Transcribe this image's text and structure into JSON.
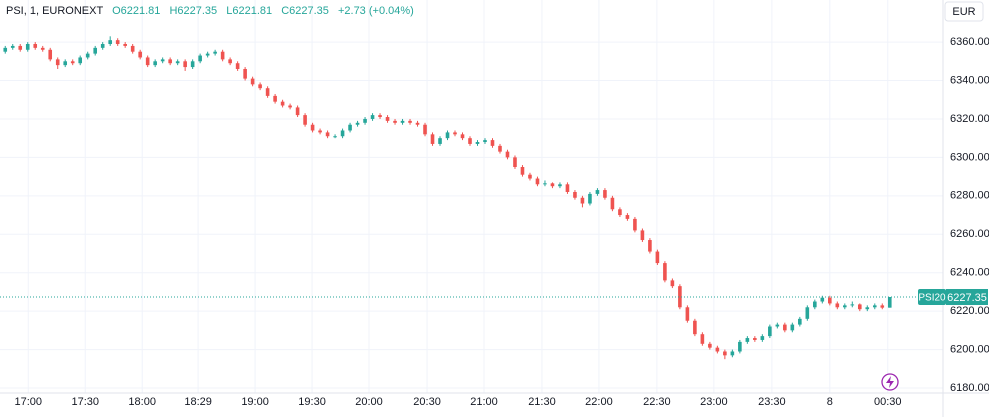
{
  "chart_data": {
    "type": "candlestick",
    "legend_items": [
      "PSI, 1, EURONEXT",
      "O6221.81",
      "H6227.35",
      "L6221.81",
      "C6227.35",
      "+2.73 (+0.04%)"
    ],
    "currency": "EUR",
    "symbol_tag": "PSI20",
    "last_price": 6227.35,
    "up_color": "#26a69a",
    "down_color": "#ef5350",
    "grid": true,
    "ylim": [
      6177.4,
      6381.9
    ],
    "yticks": [
      {
        "value": 6180,
        "label": "6180.00"
      },
      {
        "value": 6200,
        "label": "6200.00"
      },
      {
        "value": 6220,
        "label": "6220.00"
      },
      {
        "value": 6240,
        "label": "6240.00"
      },
      {
        "value": 6260,
        "label": "6260.00"
      },
      {
        "value": 6280,
        "label": "6280.00"
      },
      {
        "value": 6300,
        "label": "6300.00"
      },
      {
        "value": 6320,
        "label": "6320.00"
      },
      {
        "value": 6340,
        "label": "6340.00"
      },
      {
        "value": 6360,
        "label": "6360.00"
      }
    ],
    "xlim": [
      -0.7,
      125.1
    ],
    "xticks": [
      {
        "value": 3.07,
        "label": "17:00"
      },
      {
        "value": 10.67,
        "label": "17:30"
      },
      {
        "value": 18.27,
        "label": "18:00"
      },
      {
        "value": 25.73,
        "label": "18:29"
      },
      {
        "value": 33.33,
        "label": "19:00"
      },
      {
        "value": 40.93,
        "label": "19:30"
      },
      {
        "value": 48.53,
        "label": "20:00"
      },
      {
        "value": 56.27,
        "label": "20:30"
      },
      {
        "value": 63.87,
        "label": "21:00"
      },
      {
        "value": 71.6,
        "label": "21:30"
      },
      {
        "value": 79.2,
        "label": "22:00"
      },
      {
        "value": 86.93,
        "label": "22:30"
      },
      {
        "value": 94.53,
        "label": "23:00"
      },
      {
        "value": 102.27,
        "label": "23:30"
      },
      {
        "value": 110,
        "label": "8"
      },
      {
        "value": 117.73,
        "label": "00:30"
      }
    ],
    "ohlc": [
      [
        6355,
        6358,
        6354,
        6357
      ],
      [
        6357,
        6359,
        6356,
        6358
      ],
      [
        6358,
        6359,
        6355,
        6356
      ],
      [
        6356,
        6360,
        6355,
        6359
      ],
      [
        6359,
        6360,
        6356,
        6357
      ],
      [
        6357,
        6358,
        6355,
        6356
      ],
      [
        6356,
        6357,
        6350,
        6351
      ],
      [
        6351,
        6352,
        6346,
        6348
      ],
      [
        6348,
        6351,
        6347,
        6350
      ],
      [
        6350,
        6351,
        6348,
        6349
      ],
      [
        6349,
        6353,
        6348,
        6352
      ],
      [
        6352,
        6355,
        6351,
        6354
      ],
      [
        6354,
        6358,
        6353,
        6357
      ],
      [
        6357,
        6360,
        6356,
        6359
      ],
      [
        6359,
        6363,
        6358,
        6361
      ],
      [
        6361,
        6362,
        6358,
        6359
      ],
      [
        6359,
        6360,
        6357,
        6358
      ],
      [
        6358,
        6359,
        6354,
        6355
      ],
      [
        6355,
        6356,
        6351,
        6352
      ],
      [
        6352,
        6353,
        6347,
        6348
      ],
      [
        6348,
        6351,
        6347,
        6350
      ],
      [
        6350,
        6352,
        6349,
        6351
      ],
      [
        6351,
        6352,
        6348,
        6349
      ],
      [
        6349,
        6351,
        6348,
        6350
      ],
      [
        6350,
        6351,
        6345,
        6347
      ],
      [
        6347,
        6351,
        6346,
        6350
      ],
      [
        6350,
        6354,
        6349,
        6353
      ],
      [
        6353,
        6355,
        6352,
        6354
      ],
      [
        6354,
        6356,
        6353,
        6355
      ],
      [
        6355,
        6356,
        6350,
        6351
      ],
      [
        6351,
        6352,
        6348,
        6349
      ],
      [
        6349,
        6350,
        6345,
        6346
      ],
      [
        6346,
        6347,
        6340,
        6341
      ],
      [
        6341,
        6342,
        6337,
        6338
      ],
      [
        6338,
        6339,
        6335,
        6336
      ],
      [
        6336,
        6337,
        6331,
        6332
      ],
      [
        6332,
        6333,
        6328,
        6329
      ],
      [
        6329,
        6330,
        6326,
        6327
      ],
      [
        6327,
        6328,
        6325,
        6326
      ],
      [
        6326,
        6327,
        6321,
        6322
      ],
      [
        6322,
        6323,
        6316,
        6317
      ],
      [
        6317,
        6318,
        6313,
        6314
      ],
      [
        6314,
        6315,
        6312,
        6313
      ],
      [
        6313,
        6314,
        6310,
        6311
      ],
      [
        6311,
        6312,
        6310,
        6311
      ],
      [
        6311,
        6315,
        6310,
        6314
      ],
      [
        6314,
        6318,
        6313,
        6317
      ],
      [
        6317,
        6319,
        6316,
        6318
      ],
      [
        6318,
        6321,
        6317,
        6320
      ],
      [
        6320,
        6323,
        6319,
        6322
      ],
      [
        6322,
        6323,
        6320,
        6321
      ],
      [
        6321,
        6322,
        6318,
        6319
      ],
      [
        6319,
        6320,
        6317,
        6318
      ],
      [
        6318,
        6320,
        6317,
        6319
      ],
      [
        6319,
        6320,
        6317,
        6318
      ],
      [
        6318,
        6319,
        6316,
        6317
      ],
      [
        6317,
        6318,
        6311,
        6312
      ],
      [
        6312,
        6313,
        6306,
        6307
      ],
      [
        6307,
        6311,
        6306,
        6310
      ],
      [
        6310,
        6314,
        6309,
        6313
      ],
      [
        6313,
        6314,
        6311,
        6312
      ],
      [
        6312,
        6313,
        6309,
        6310
      ],
      [
        6310,
        6311,
        6306,
        6307
      ],
      [
        6307,
        6309,
        6306,
        6308
      ],
      [
        6308,
        6310,
        6307,
        6309
      ],
      [
        6309,
        6310,
        6305,
        6306
      ],
      [
        6306,
        6307,
        6302,
        6303
      ],
      [
        6303,
        6304,
        6299,
        6300
      ],
      [
        6300,
        6301,
        6294,
        6295
      ],
      [
        6295,
        6296,
        6290,
        6291
      ],
      [
        6291,
        6292,
        6288,
        6289
      ],
      [
        6289,
        6290,
        6285,
        6286
      ],
      [
        6286,
        6288,
        6285,
        6286.5
      ],
      [
        6286.5,
        6287,
        6284,
        6285
      ],
      [
        6285,
        6287,
        6284,
        6286
      ],
      [
        6286,
        6287,
        6281,
        6282
      ],
      [
        6282,
        6283,
        6278,
        6279
      ],
      [
        6279,
        6280,
        6274,
        6276
      ],
      [
        6276,
        6282,
        6275,
        6281
      ],
      [
        6281,
        6284,
        6280,
        6283
      ],
      [
        6283,
        6284,
        6278,
        6279
      ],
      [
        6279,
        6280,
        6272,
        6273
      ],
      [
        6273,
        6274,
        6269,
        6270
      ],
      [
        6270,
        6271,
        6267,
        6268
      ],
      [
        6268,
        6269,
        6261,
        6262
      ],
      [
        6262,
        6263,
        6256,
        6257
      ],
      [
        6257,
        6258,
        6250,
        6251
      ],
      [
        6251,
        6252,
        6244,
        6245
      ],
      [
        6245,
        6246,
        6235,
        6236
      ],
      [
        6236,
        6237,
        6232,
        6233
      ],
      [
        6233,
        6234,
        6221,
        6222
      ],
      [
        6222,
        6223,
        6214,
        6215
      ],
      [
        6215,
        6216,
        6207,
        6208
      ],
      [
        6208,
        6209,
        6202,
        6203
      ],
      [
        6203,
        6204,
        6200,
        6201
      ],
      [
        6201,
        6202,
        6198,
        6199
      ],
      [
        6199,
        6200,
        6195,
        6197
      ],
      [
        6197,
        6200,
        6196,
        6199
      ],
      [
        6199,
        6205,
        6198,
        6204
      ],
      [
        6204,
        6207,
        6203,
        6206
      ],
      [
        6206,
        6207,
        6204,
        6205
      ],
      [
        6205,
        6208,
        6204,
        6207
      ],
      [
        6207,
        6213,
        6206,
        6212
      ],
      [
        6212,
        6214,
        6211,
        6213
      ],
      [
        6213,
        6214,
        6209,
        6210
      ],
      [
        6210,
        6214,
        6209,
        6213
      ],
      [
        6213,
        6217,
        6212,
        6216
      ],
      [
        6216,
        6223,
        6215,
        6222
      ],
      [
        6222,
        6226,
        6221,
        6225
      ],
      [
        6225,
        6228,
        6224,
        6227
      ],
      [
        6227,
        6228,
        6223,
        6224
      ],
      [
        6224,
        6225,
        6221,
        6222
      ],
      [
        6222,
        6224,
        6221,
        6223
      ],
      [
        6223,
        6225,
        6222,
        6223.5
      ],
      [
        6223.5,
        6224,
        6220,
        6221
      ],
      [
        6221,
        6223,
        6220,
        6222
      ],
      [
        6222,
        6224,
        6221,
        6223
      ],
      [
        6223,
        6224,
        6221,
        6221.81
      ],
      [
        6221.81,
        6227.35,
        6221.81,
        6227.35
      ]
    ]
  }
}
